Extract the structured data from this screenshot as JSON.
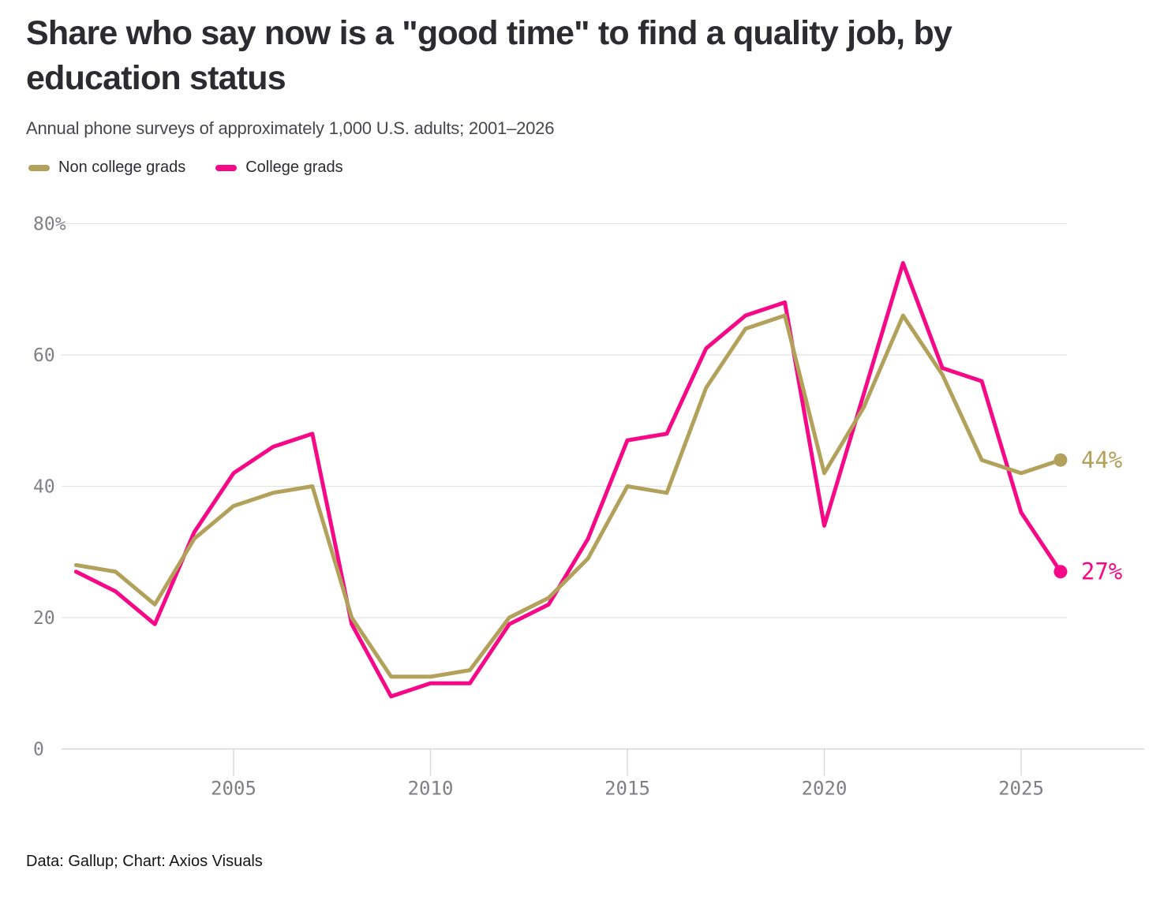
{
  "title": "Share who say now is a \"good time\" to find a quality job, by education status",
  "subtitle": "Annual phone surveys of approximately 1,000 U.S. adults; 2001–2026",
  "footer": "Data: Gallup; Chart: Axios Visuals",
  "chart_data": {
    "type": "line",
    "x": [
      2001,
      2002,
      2003,
      2004,
      2005,
      2006,
      2007,
      2008,
      2009,
      2010,
      2011,
      2012,
      2013,
      2014,
      2015,
      2016,
      2017,
      2018,
      2019,
      2020,
      2021,
      2022,
      2023,
      2024,
      2025,
      2026
    ],
    "series": [
      {
        "name": "Non college grads",
        "color": "#b2a15a",
        "end_label": "44%",
        "values": [
          28,
          27,
          22,
          32,
          37,
          39,
          40,
          20,
          11,
          11,
          12,
          20,
          23,
          29,
          40,
          39,
          55,
          64,
          66,
          42,
          52,
          66,
          57,
          44,
          42,
          44
        ]
      },
      {
        "name": "College grads",
        "color": "#f60887",
        "end_label": "27%",
        "values": [
          27,
          24,
          19,
          33,
          42,
          46,
          48,
          19,
          8,
          10,
          10,
          19,
          22,
          32,
          47,
          48,
          61,
          66,
          68,
          34,
          54,
          74,
          58,
          56,
          36,
          27
        ]
      }
    ],
    "title": "Share who say now is a \"good time\" to find a quality job, by education status",
    "xlabel": "",
    "ylabel": "",
    "ylim": [
      0,
      80
    ],
    "y_ticks": [
      {
        "value": 0,
        "label": "0"
      },
      {
        "value": 20,
        "label": "20"
      },
      {
        "value": 40,
        "label": "40"
      },
      {
        "value": 60,
        "label": "60"
      },
      {
        "value": 80,
        "label": "80%"
      }
    ],
    "x_ticks": [
      2005,
      2010,
      2015,
      2020,
      2025
    ],
    "grid": "horizontal",
    "legend_position": "top-left"
  }
}
